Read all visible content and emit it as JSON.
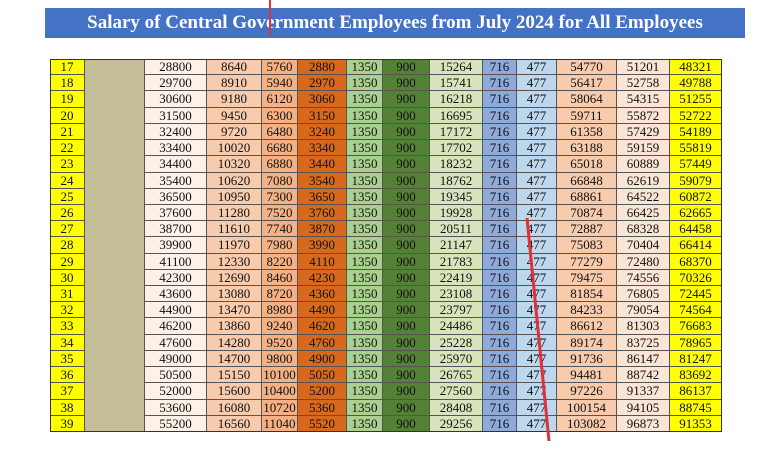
{
  "header": {
    "title": "Salary of Central Government Employees from July 2024 for All Employees"
  },
  "table": {
    "rows": [
      [
        17,
        28800,
        8640,
        5760,
        2880,
        1350,
        900,
        15264,
        716,
        477,
        54770,
        51201,
        48321
      ],
      [
        18,
        29700,
        8910,
        5940,
        2970,
        1350,
        900,
        15741,
        716,
        477,
        56417,
        52758,
        49788
      ],
      [
        19,
        30600,
        9180,
        6120,
        3060,
        1350,
        900,
        16218,
        716,
        477,
        58064,
        54315,
        51255
      ],
      [
        20,
        31500,
        9450,
        6300,
        3150,
        1350,
        900,
        16695,
        716,
        477,
        59711,
        55872,
        52722
      ],
      [
        21,
        32400,
        9720,
        6480,
        3240,
        1350,
        900,
        17172,
        716,
        477,
        61358,
        57429,
        54189
      ],
      [
        22,
        33400,
        10020,
        6680,
        3340,
        1350,
        900,
        17702,
        716,
        477,
        63188,
        59159,
        55819
      ],
      [
        23,
        34400,
        10320,
        6880,
        3440,
        1350,
        900,
        18232,
        716,
        477,
        65018,
        60889,
        57449
      ],
      [
        24,
        35400,
        10620,
        7080,
        3540,
        1350,
        900,
        18762,
        716,
        477,
        66848,
        62619,
        59079
      ],
      [
        25,
        36500,
        10950,
        7300,
        3650,
        1350,
        900,
        19345,
        716,
        477,
        68861,
        64522,
        60872
      ],
      [
        26,
        37600,
        11280,
        7520,
        3760,
        1350,
        900,
        19928,
        716,
        477,
        70874,
        66425,
        62665
      ],
      [
        27,
        38700,
        11610,
        7740,
        3870,
        1350,
        900,
        20511,
        716,
        477,
        72887,
        68328,
        64458
      ],
      [
        28,
        39900,
        11970,
        7980,
        3990,
        1350,
        900,
        21147,
        716,
        477,
        75083,
        70404,
        66414
      ],
      [
        29,
        41100,
        12330,
        8220,
        4110,
        1350,
        900,
        21783,
        716,
        477,
        77279,
        72480,
        68370
      ],
      [
        30,
        42300,
        12690,
        8460,
        4230,
        1350,
        900,
        22419,
        716,
        477,
        79475,
        74556,
        70326
      ],
      [
        31,
        43600,
        13080,
        8720,
        4360,
        1350,
        900,
        23108,
        716,
        477,
        81854,
        76805,
        72445
      ],
      [
        32,
        44900,
        13470,
        8980,
        4490,
        1350,
        900,
        23797,
        716,
        477,
        84233,
        79054,
        74564
      ],
      [
        33,
        46200,
        13860,
        9240,
        4620,
        1350,
        900,
        24486,
        716,
        477,
        86612,
        81303,
        76683
      ],
      [
        34,
        47600,
        14280,
        9520,
        4760,
        1350,
        900,
        25228,
        716,
        477,
        89174,
        83725,
        78965
      ],
      [
        35,
        49000,
        14700,
        9800,
        4900,
        1350,
        900,
        25970,
        716,
        477,
        91736,
        86147,
        81247
      ],
      [
        36,
        50500,
        15150,
        10100,
        5050,
        1350,
        900,
        26765,
        716,
        477,
        94481,
        88742,
        83692
      ],
      [
        37,
        52000,
        15600,
        10400,
        5200,
        1350,
        900,
        27560,
        716,
        477,
        97226,
        91337,
        86137
      ],
      [
        38,
        53600,
        16080,
        10720,
        5360,
        1350,
        900,
        28408,
        716,
        477,
        100154,
        94105,
        88745
      ],
      [
        39,
        55200,
        16560,
        11040,
        5520,
        1350,
        900,
        29256,
        716,
        477,
        103082,
        96873,
        91353
      ]
    ]
  }
}
